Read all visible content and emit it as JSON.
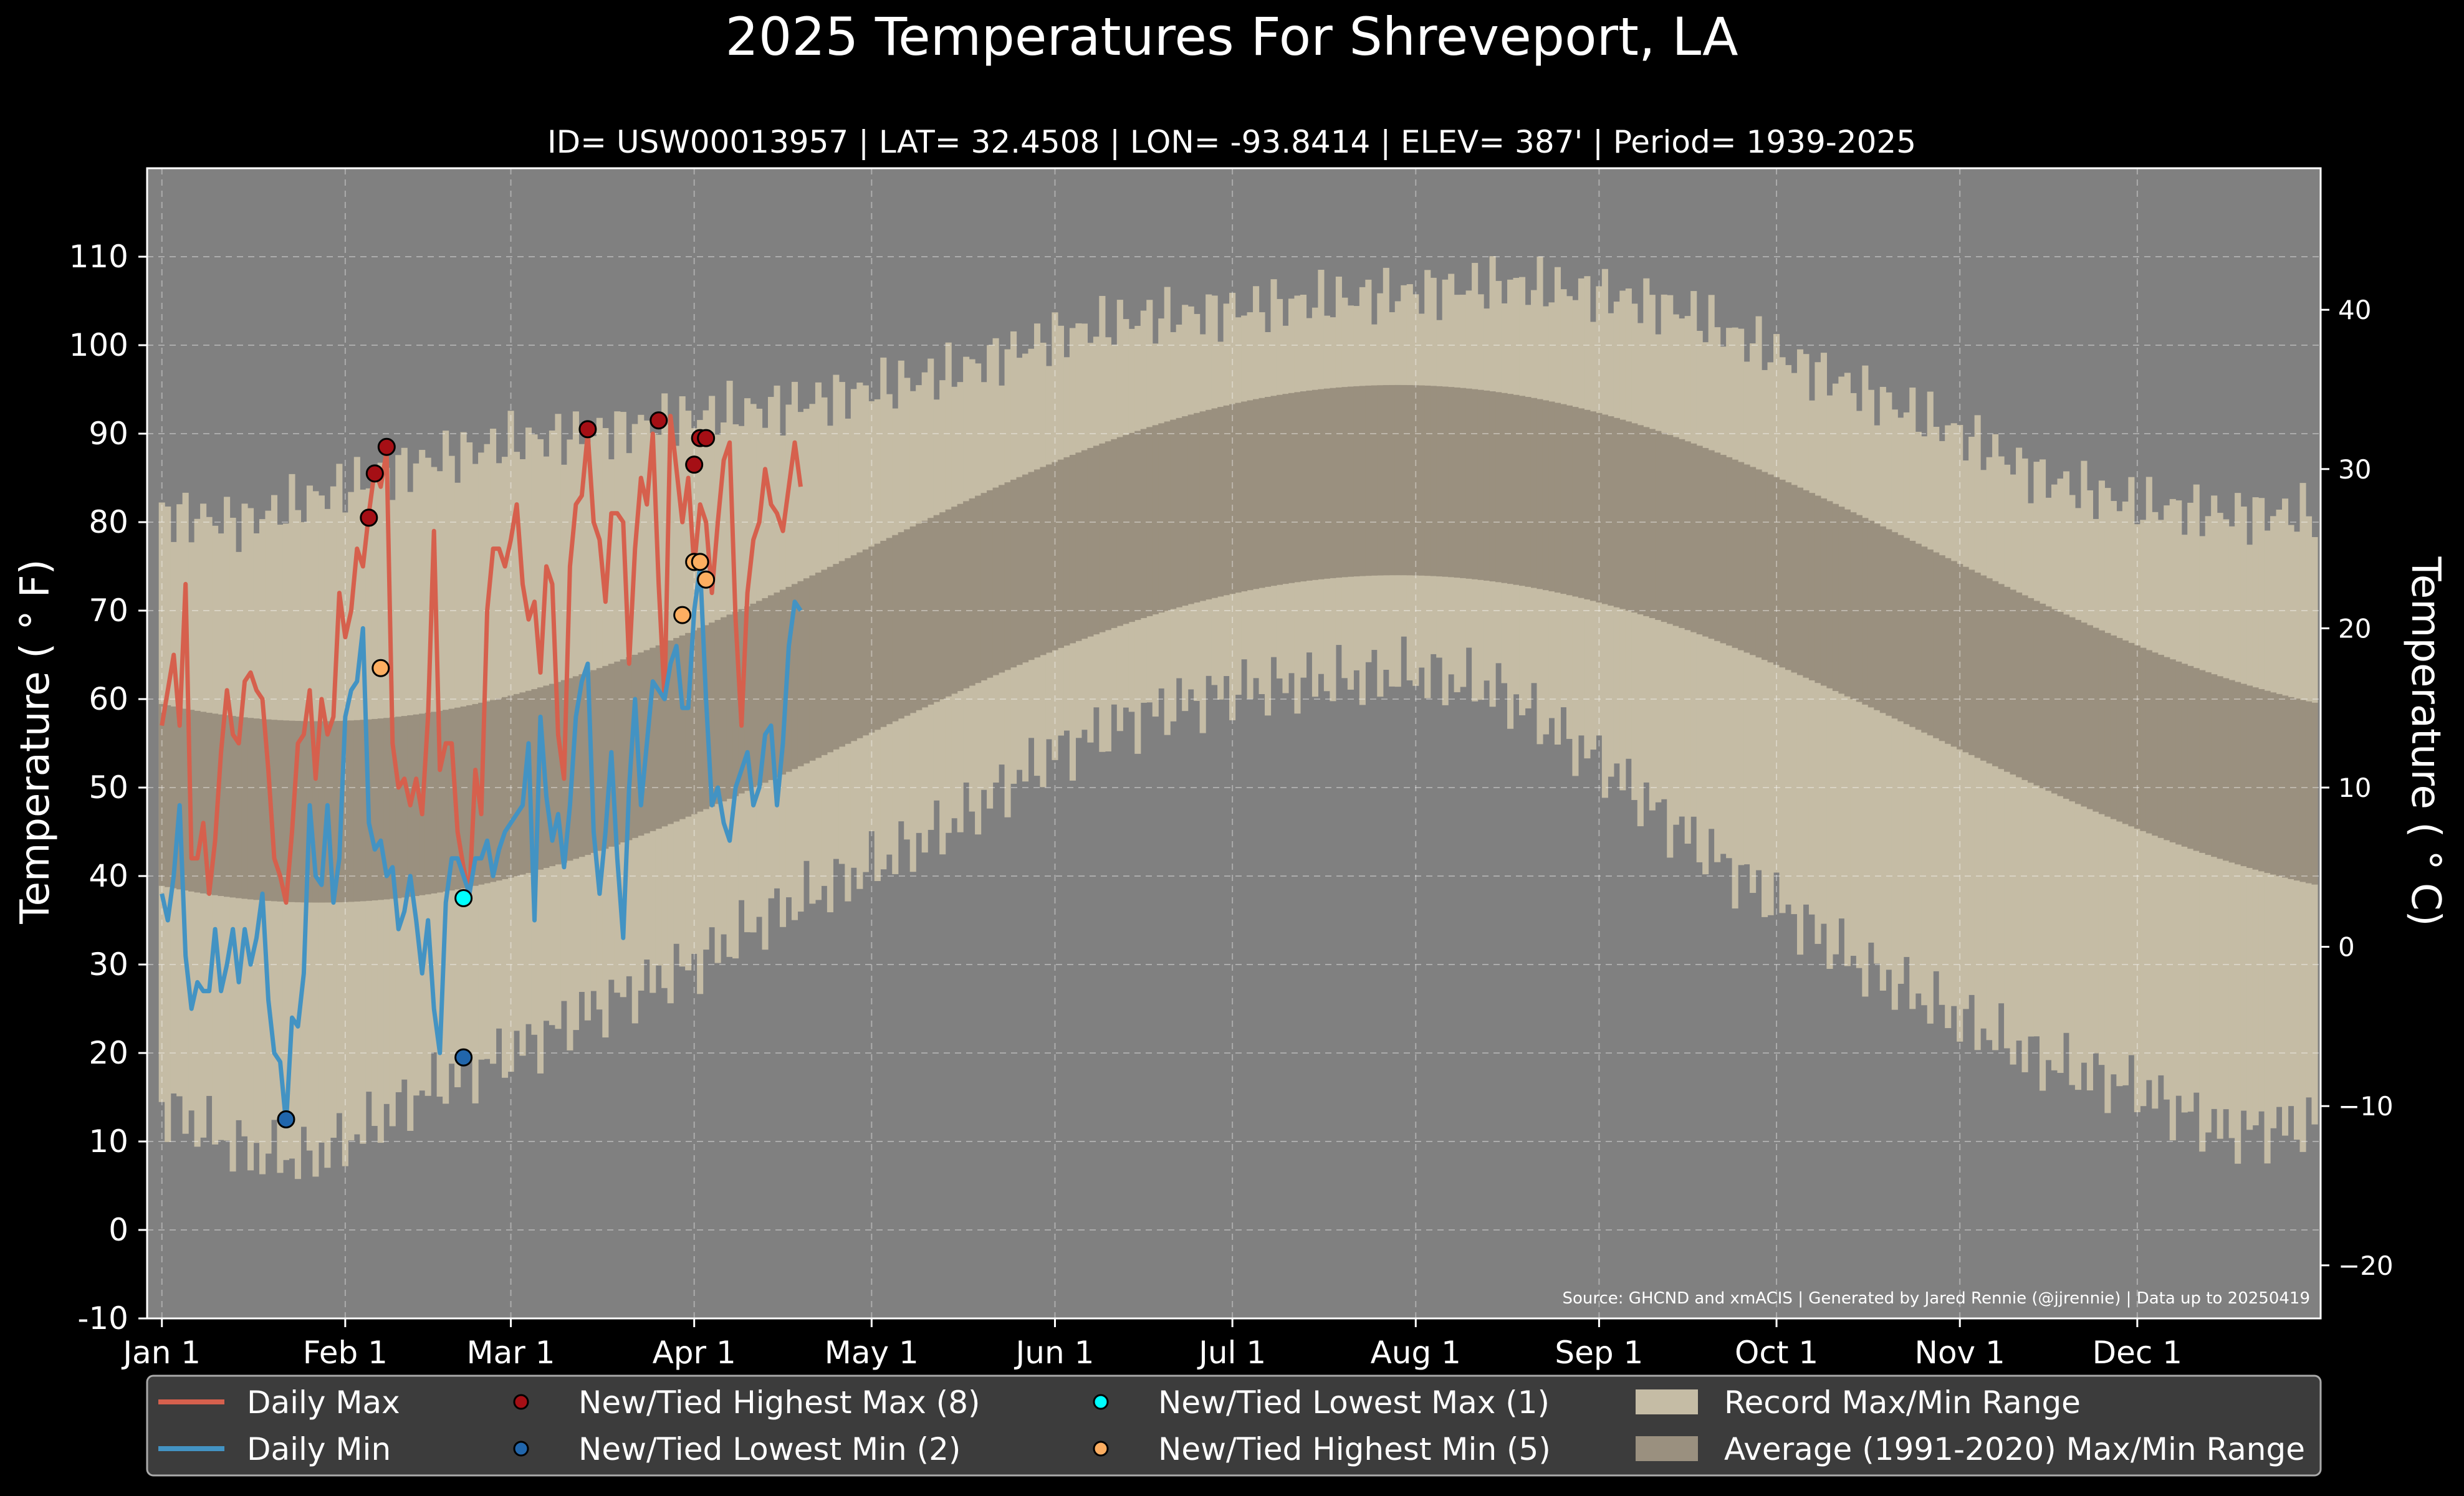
{
  "chart_data": {
    "type": "line",
    "title": "2025 Temperatures For Shreveport, LA",
    "subtitle": "ID= USW00013957 | LAT= 32.4508 | LON= -93.8414 | ELEV= 387' | Period= 1939-2025",
    "ylabel": "Temperature ( ° F)",
    "ylabel_right": "Temperature ( ° C)",
    "source_note": "Source: GHCND and xmACIS | Generated by Jared Rennie (@jjrennie) | Data up to 20250419",
    "ylim": [
      -10,
      120
    ],
    "xlim": [
      -1.5,
      366
    ],
    "y_ticks": [
      -10,
      0,
      10,
      20,
      30,
      40,
      50,
      60,
      70,
      80,
      90,
      100,
      110
    ],
    "y_ticks_right_c": [
      -20,
      -10,
      0,
      10,
      20,
      30,
      40
    ],
    "x_ticks": [
      {
        "label": "Jan 1",
        "day": 1
      },
      {
        "label": "Feb 1",
        "day": 32
      },
      {
        "label": "Mar 1",
        "day": 60
      },
      {
        "label": "Apr 1",
        "day": 91
      },
      {
        "label": "May 1",
        "day": 121
      },
      {
        "label": "Jun 1",
        "day": 152
      },
      {
        "label": "Jul 1",
        "day": 182
      },
      {
        "label": "Aug 1",
        "day": 213
      },
      {
        "label": "Sep 1",
        "day": 244
      },
      {
        "label": "Oct 1",
        "day": 274
      },
      {
        "label": "Nov 1",
        "day": 305
      },
      {
        "label": "Dec 1",
        "day": 335
      }
    ],
    "grid": true,
    "colors": {
      "background": "#000000",
      "plot_bg": "#808080",
      "record_band": "#c5bca5",
      "normal_band": "#9a907f",
      "daily_max": "#d6604d",
      "daily_min": "#4393c3",
      "high_max_marker": "#a50f15",
      "low_min_marker": "#2166ac",
      "low_max_marker": "#00ffff",
      "high_min_marker": "#fdae61",
      "legend_bg": "#3c3c3c"
    },
    "record_max_knots": [
      [
        1,
        81
      ],
      [
        15,
        80
      ],
      [
        32,
        84
      ],
      [
        46,
        87
      ],
      [
        60,
        89
      ],
      [
        74,
        90
      ],
      [
        91,
        92
      ],
      [
        105,
        93
      ],
      [
        121,
        95
      ],
      [
        135,
        97
      ],
      [
        152,
        101
      ],
      [
        166,
        103
      ],
      [
        182,
        104
      ],
      [
        196,
        105
      ],
      [
        213,
        106
      ],
      [
        227,
        107
      ],
      [
        244,
        106
      ],
      [
        258,
        104
      ],
      [
        274,
        99
      ],
      [
        288,
        95
      ],
      [
        305,
        90
      ],
      [
        319,
        85
      ],
      [
        335,
        82
      ],
      [
        350,
        81
      ],
      [
        365,
        81
      ]
    ],
    "record_min_knots": [
      [
        1,
        14
      ],
      [
        15,
        9
      ],
      [
        25,
        8
      ],
      [
        32,
        10
      ],
      [
        46,
        16
      ],
      [
        60,
        20
      ],
      [
        74,
        25
      ],
      [
        91,
        30
      ],
      [
        105,
        36
      ],
      [
        121,
        41
      ],
      [
        135,
        46
      ],
      [
        152,
        54
      ],
      [
        166,
        58
      ],
      [
        182,
        61
      ],
      [
        196,
        62
      ],
      [
        213,
        63
      ],
      [
        227,
        61
      ],
      [
        244,
        53
      ],
      [
        258,
        45
      ],
      [
        274,
        37
      ],
      [
        288,
        30
      ],
      [
        305,
        24
      ],
      [
        319,
        19
      ],
      [
        335,
        16
      ],
      [
        350,
        11
      ],
      [
        365,
        12
      ]
    ],
    "series": [
      {
        "name": "Daily Max",
        "x": [
          1,
          2,
          3,
          4,
          5,
          6,
          7,
          8,
          9,
          10,
          11,
          12,
          13,
          14,
          15,
          16,
          17,
          18,
          19,
          20,
          21,
          22,
          23,
          24,
          25,
          26,
          27,
          28,
          29,
          30,
          31,
          32,
          33,
          34,
          35,
          36,
          37,
          38,
          39,
          40,
          41,
          42,
          43,
          44,
          45,
          46,
          47,
          48,
          49,
          50,
          51,
          52,
          53,
          54,
          55,
          56,
          57,
          58,
          59,
          60,
          61,
          62,
          63,
          64,
          65,
          66,
          67,
          68,
          69,
          70,
          71,
          72,
          73,
          74,
          75,
          76,
          77,
          78,
          79,
          80,
          81,
          82,
          83,
          84,
          85,
          86,
          87,
          88,
          89,
          90,
          91,
          92,
          93,
          94,
          95,
          96,
          97,
          98,
          99,
          100,
          101,
          102,
          103,
          104,
          105,
          106,
          107,
          108,
          109
        ],
        "values": [
          57,
          61,
          65,
          57,
          73,
          42,
          42,
          46,
          38,
          44,
          54,
          61,
          56,
          55,
          62,
          63,
          61,
          60,
          52,
          42,
          40,
          37,
          45,
          55,
          56,
          61,
          51,
          60,
          56,
          58,
          72,
          67,
          70,
          77,
          75,
          81,
          86,
          84,
          88,
          55,
          50,
          51,
          48,
          51,
          47,
          58,
          79,
          52,
          55,
          55,
          45,
          41,
          38,
          52,
          47,
          70,
          77,
          77,
          75,
          78,
          82,
          73,
          69,
          71,
          63,
          75,
          73,
          56,
          51,
          75,
          82,
          83,
          90,
          80,
          78,
          71,
          81,
          81,
          80,
          64,
          77,
          85,
          82,
          90,
          73,
          60,
          92,
          86,
          80,
          85,
          75,
          82,
          80,
          72,
          80,
          87,
          89,
          69,
          57,
          72,
          78,
          80,
          86,
          82,
          81,
          79,
          84,
          89,
          84
        ]
      },
      {
        "name": "Daily Min",
        "x": [
          1,
          2,
          3,
          4,
          5,
          6,
          7,
          8,
          9,
          10,
          11,
          12,
          13,
          14,
          15,
          16,
          17,
          18,
          19,
          20,
          21,
          22,
          23,
          24,
          25,
          26,
          27,
          28,
          29,
          30,
          31,
          32,
          33,
          34,
          35,
          36,
          37,
          38,
          39,
          40,
          41,
          42,
          43,
          44,
          45,
          46,
          47,
          48,
          49,
          50,
          51,
          52,
          53,
          54,
          55,
          56,
          57,
          58,
          59,
          60,
          61,
          62,
          63,
          64,
          65,
          66,
          67,
          68,
          69,
          70,
          71,
          72,
          73,
          74,
          75,
          76,
          77,
          78,
          79,
          80,
          81,
          82,
          83,
          84,
          85,
          86,
          87,
          88,
          89,
          90,
          91,
          92,
          93,
          94,
          95,
          96,
          97,
          98,
          99,
          100,
          101,
          102,
          103,
          104,
          105,
          106,
          107,
          108,
          109
        ],
        "values": [
          38,
          35,
          40,
          48,
          31,
          25,
          28,
          27,
          27,
          34,
          27,
          30,
          34,
          28,
          34,
          30,
          33,
          38,
          26,
          20,
          19,
          12,
          24,
          23,
          29,
          48,
          40,
          39,
          48,
          37,
          42,
          58,
          61,
          62,
          68,
          46,
          43,
          44,
          40,
          41,
          34,
          36,
          40,
          35,
          29,
          35,
          25,
          20,
          37,
          42,
          42,
          40,
          38,
          42,
          42,
          44,
          40,
          43,
          45,
          46,
          47,
          48,
          55,
          35,
          58,
          49,
          44,
          47,
          41,
          48,
          58,
          62,
          64,
          45,
          38,
          45,
          54,
          42,
          33,
          50,
          60,
          48,
          55,
          62,
          61,
          60,
          64,
          66,
          59,
          59,
          70,
          75,
          60,
          48,
          50,
          46,
          44,
          50,
          52,
          54,
          48,
          50,
          56,
          57,
          48,
          55,
          66,
          71,
          70
        ]
      }
    ],
    "records": {
      "high_max": {
        "label": "New/Tied Highest Max (8)",
        "points": [
          [
            36,
            80.5
          ],
          [
            37,
            85.5
          ],
          [
            39,
            88.5
          ],
          [
            73,
            90.5
          ],
          [
            85,
            91.5
          ],
          [
            91,
            86.5
          ],
          [
            92,
            89.5
          ],
          [
            93,
            89.5
          ]
        ]
      },
      "low_min": {
        "label": "New/Tied Lowest Min (2)",
        "points": [
          [
            22,
            12.5
          ],
          [
            52,
            19.5
          ]
        ]
      },
      "low_max": {
        "label": "New/Tied Lowest Max (1)",
        "points": [
          [
            52,
            37.5
          ]
        ]
      },
      "high_min": {
        "label": "New/Tied Highest Min (5)",
        "points": [
          [
            38,
            63.5
          ],
          [
            89,
            69.5
          ],
          [
            91,
            75.5
          ],
          [
            92,
            75.5
          ],
          [
            93,
            73.5
          ]
        ]
      }
    },
    "legend": {
      "placement": "bottom",
      "items": [
        {
          "label": "Daily Max",
          "kind": "line",
          "color_key": "daily_max"
        },
        {
          "label": "Daily Min",
          "kind": "line",
          "color_key": "daily_min"
        },
        {
          "label": "New/Tied Highest Max (8)",
          "kind": "marker",
          "color_key": "high_max_marker"
        },
        {
          "label": "New/Tied Lowest Min (2)",
          "kind": "marker",
          "color_key": "low_min_marker"
        },
        {
          "label": "New/Tied Lowest Max (1)",
          "kind": "marker",
          "color_key": "low_max_marker"
        },
        {
          "label": "New/Tied Highest Min (5)",
          "kind": "marker",
          "color_key": "high_min_marker"
        },
        {
          "label": "Record Max/Min Range",
          "kind": "patch",
          "color_key": "record_band"
        },
        {
          "label": "Average (1991-2020) Max/Min Range",
          "kind": "patch",
          "color_key": "normal_band"
        }
      ]
    }
  }
}
